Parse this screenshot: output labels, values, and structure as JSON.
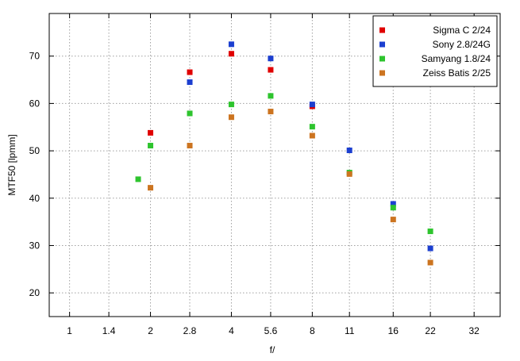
{
  "chart_data": {
    "type": "scatter",
    "xlabel": "f/",
    "ylabel": "MTF50 [lpmm]",
    "x_scale": "log2",
    "x_ticks": [
      "1",
      "1.4",
      "2",
      "2.8",
      "4",
      "5.6",
      "8",
      "11",
      "16",
      "22",
      "32"
    ],
    "xlim": [
      0.84,
      40
    ],
    "y_ticks": [
      20,
      30,
      40,
      50,
      60,
      70
    ],
    "ylim": [
      15,
      79
    ],
    "grid": true,
    "legend_position": "top-right",
    "series": [
      {
        "name": "Sigma C 2/24",
        "color": "#e00000",
        "points": [
          {
            "x": 2,
            "y": 53.8
          },
          {
            "x": 2.8,
            "y": 66.6
          },
          {
            "x": 4,
            "y": 70.5
          },
          {
            "x": 5.6,
            "y": 67.1
          },
          {
            "x": 8,
            "y": 59.4
          }
        ]
      },
      {
        "name": "Sony 2.8/24G",
        "color": "#1c3fd0",
        "points": [
          {
            "x": 2.8,
            "y": 64.5
          },
          {
            "x": 4,
            "y": 72.5
          },
          {
            "x": 5.6,
            "y": 69.5
          },
          {
            "x": 8,
            "y": 59.8
          },
          {
            "x": 11,
            "y": 50.1
          },
          {
            "x": 16,
            "y": 38.8
          },
          {
            "x": 22,
            "y": 29.4
          }
        ]
      },
      {
        "name": "Samyang 1.8/24",
        "color": "#2ec42e",
        "points": [
          {
            "x": 1.8,
            "y": 44.0
          },
          {
            "x": 2,
            "y": 51.1
          },
          {
            "x": 2.8,
            "y": 57.9
          },
          {
            "x": 4,
            "y": 59.8
          },
          {
            "x": 5.6,
            "y": 61.6
          },
          {
            "x": 8,
            "y": 55.1
          },
          {
            "x": 11,
            "y": 45.4
          },
          {
            "x": 16,
            "y": 38.0
          },
          {
            "x": 22,
            "y": 33.0
          }
        ]
      },
      {
        "name": "Zeiss Batis 2/25",
        "color": "#cc7420",
        "points": [
          {
            "x": 2,
            "y": 42.2
          },
          {
            "x": 2.8,
            "y": 51.1
          },
          {
            "x": 4,
            "y": 57.1
          },
          {
            "x": 5.6,
            "y": 58.3
          },
          {
            "x": 8,
            "y": 53.2
          },
          {
            "x": 11,
            "y": 45.1
          },
          {
            "x": 16,
            "y": 35.5
          },
          {
            "x": 22,
            "y": 26.4
          }
        ]
      }
    ]
  }
}
